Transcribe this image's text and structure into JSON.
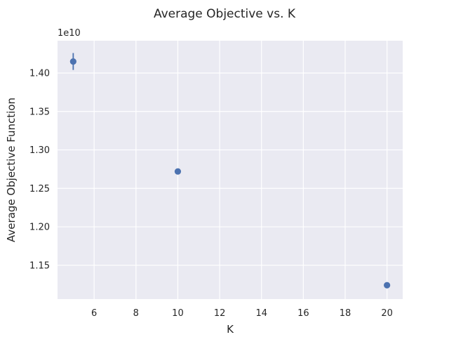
{
  "chart_data": {
    "type": "scatter",
    "title": "Average Objective vs. K",
    "xlabel": "K",
    "ylabel": "Average Objective Function",
    "y_offset_label": "1e10",
    "xlim": [
      4.25,
      20.75
    ],
    "ylim": [
      1.106,
      1.442
    ],
    "x_ticks": [
      6,
      8,
      10,
      12,
      14,
      16,
      18,
      20
    ],
    "x_tick_labels": [
      "6",
      "8",
      "10",
      "12",
      "14",
      "16",
      "18",
      "20"
    ],
    "y_ticks": [
      1.15,
      1.2,
      1.25,
      1.3,
      1.35,
      1.4
    ],
    "y_tick_labels": [
      "1.15",
      "1.20",
      "1.25",
      "1.30",
      "1.35",
      "1.40"
    ],
    "grid": true,
    "series": [
      {
        "x": [
          5,
          10,
          20
        ],
        "y": [
          1.415,
          1.272,
          1.124
        ],
        "y_err": [
          0.011,
          0.0,
          0.0
        ],
        "color": "#4c72b0"
      }
    ]
  }
}
